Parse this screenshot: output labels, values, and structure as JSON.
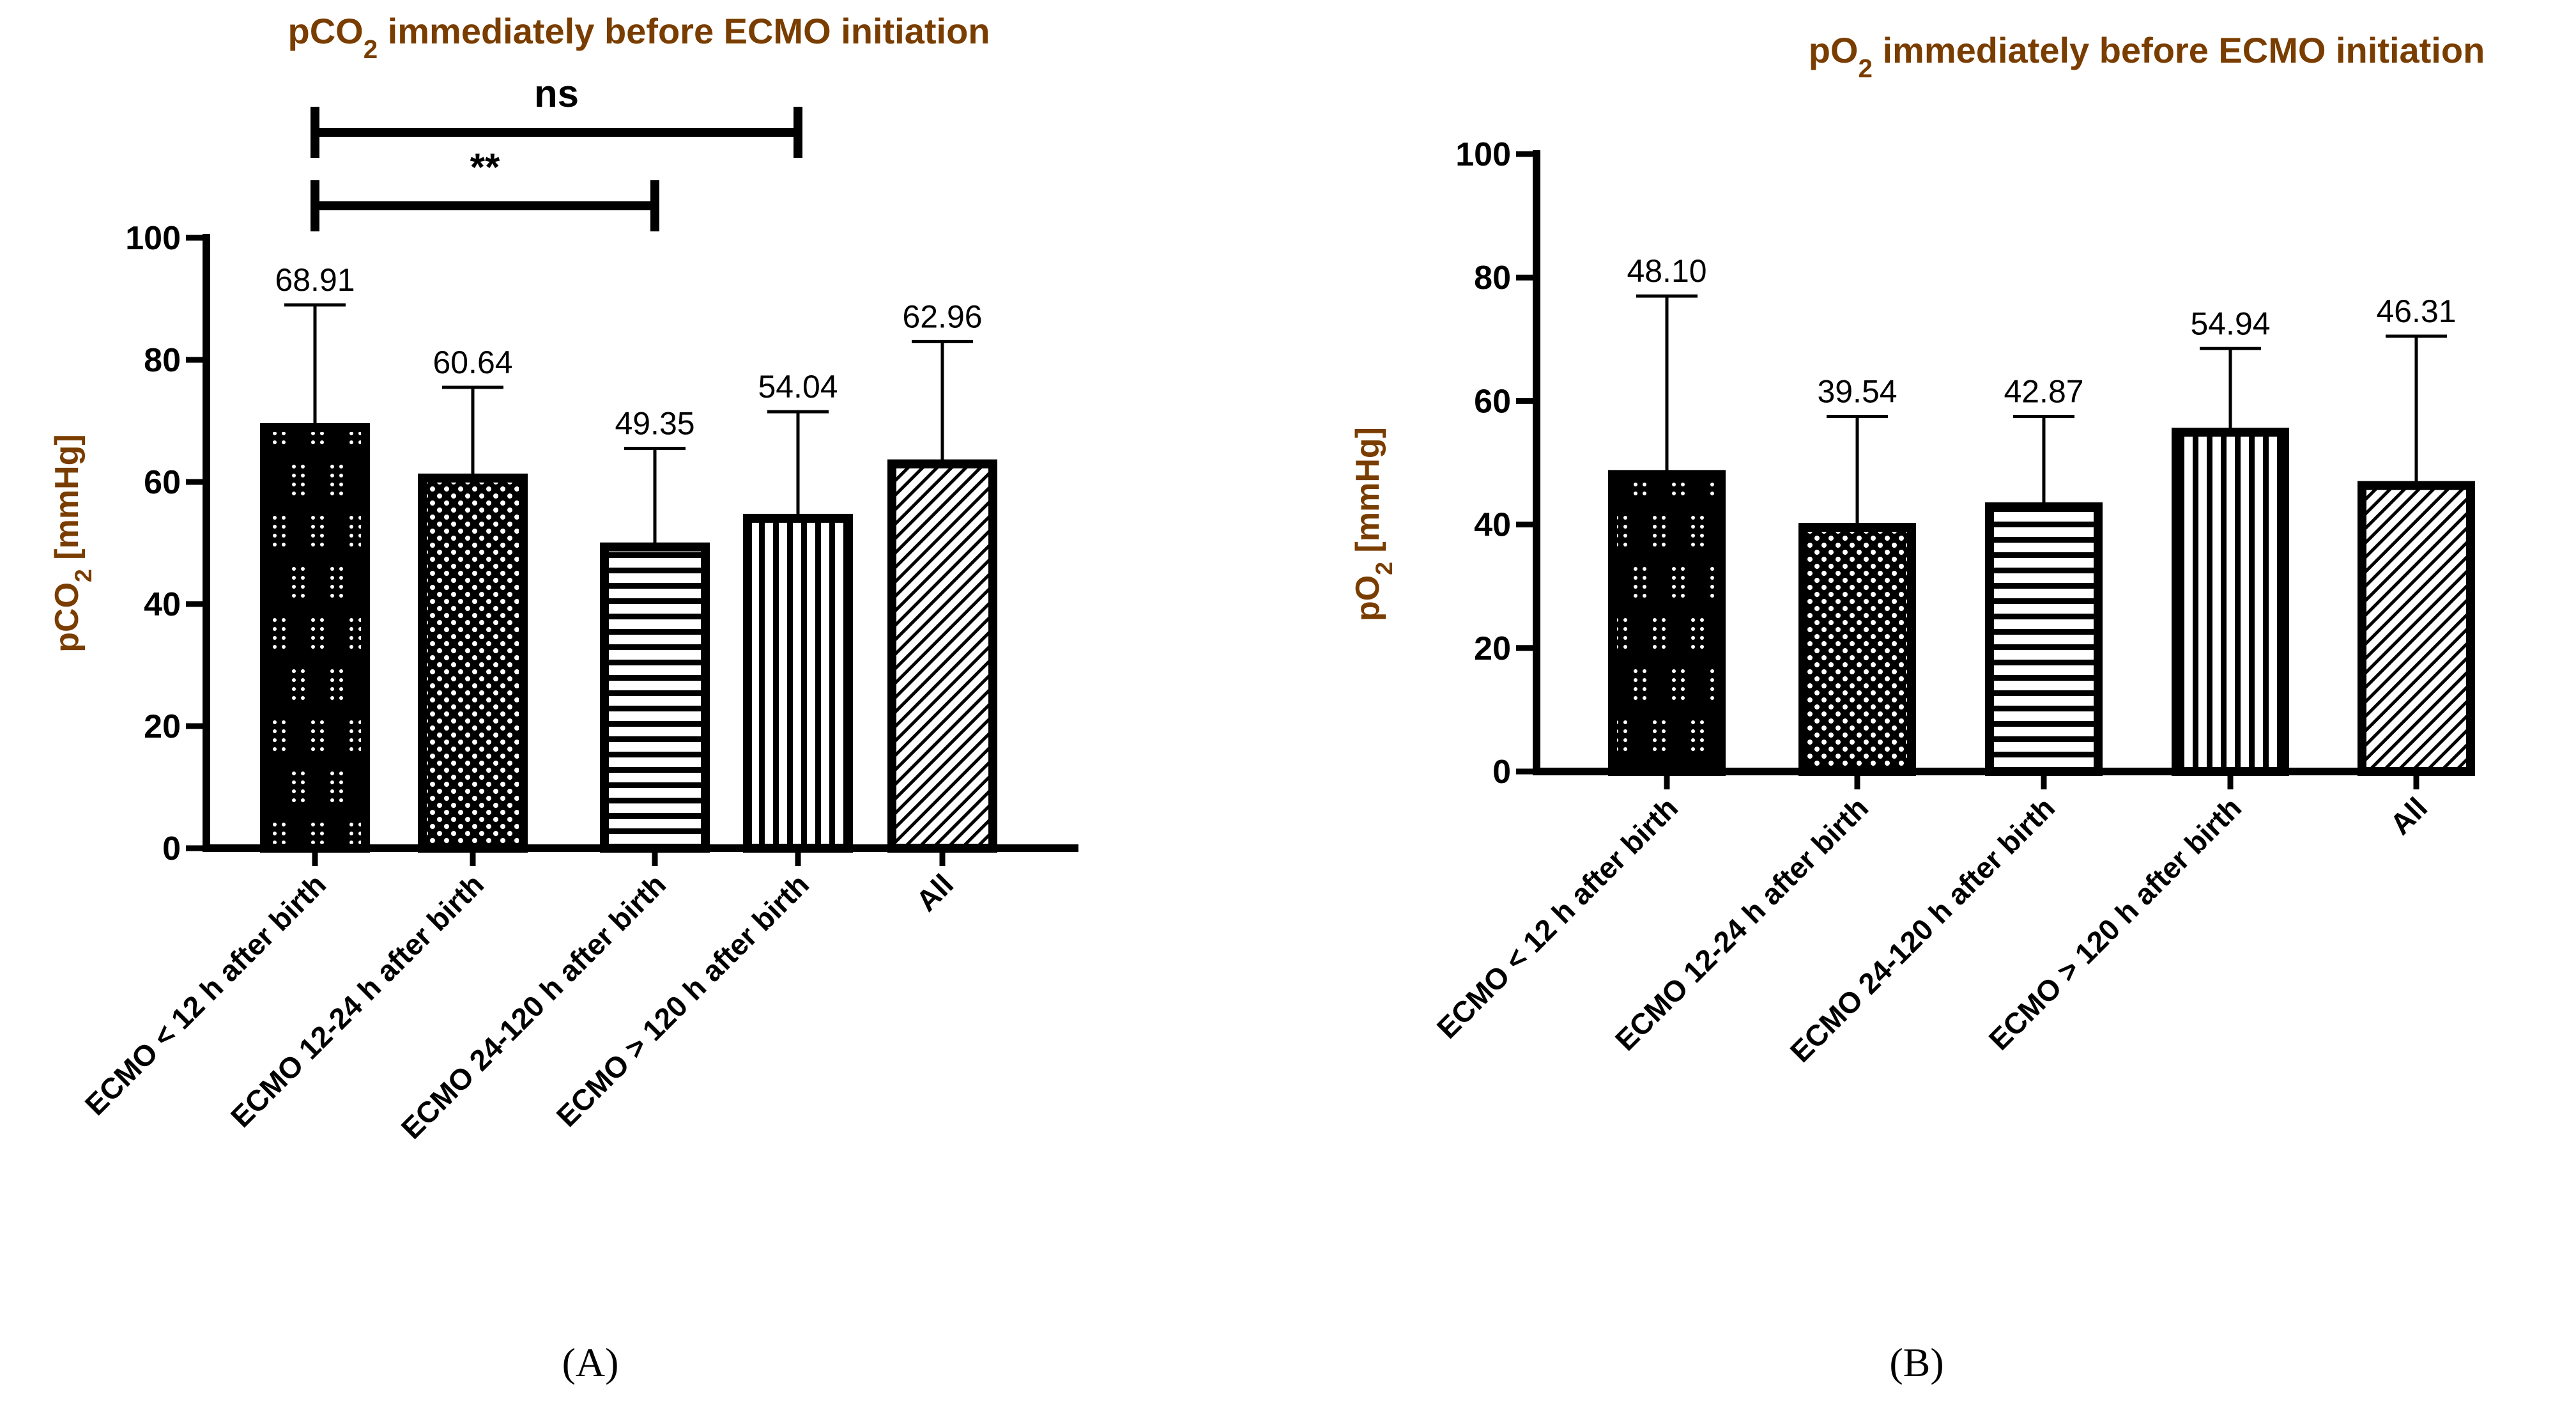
{
  "chart_data": [
    {
      "id": "A",
      "type": "bar",
      "title_main": "pCO",
      "title_sub": "2",
      "title_rest": " immediately before ECMO initiation",
      "ylabel_main": "pCO",
      "ylabel_sub": "2",
      "ylabel_rest": " [mmHg]",
      "xlabel": "",
      "ylim": [
        0,
        100
      ],
      "yticks": [
        0,
        20,
        40,
        60,
        80,
        100
      ],
      "categories": [
        "ECMO < 12 h after birth",
        "ECMO 12-24 h after birth",
        "ECMO 24-120 h after birth",
        "ECMO > 120 h after birth",
        "All"
      ],
      "values": [
        68.91,
        60.64,
        49.35,
        54.04,
        62.96
      ],
      "value_labels": [
        "68.91",
        "60.64",
        "49.35",
        "54.04",
        "62.96"
      ],
      "error_upper": [
        89,
        75.5,
        65.5,
        71.5,
        83
      ],
      "patterns": [
        "dots-sparse",
        "dots-dense",
        "horizontal-stripes",
        "vertical-stripes",
        "diagonal-hatch"
      ],
      "significance": [
        {
          "from": 0,
          "to": 3,
          "label": "ns"
        },
        {
          "from": 0,
          "to": 2,
          "label": "**"
        }
      ],
      "panel_label": "(A)"
    },
    {
      "id": "B",
      "type": "bar",
      "title_main": "pO",
      "title_sub": "2",
      "title_rest": " immediately before ECMO initiation",
      "ylabel_main": "pO",
      "ylabel_sub": "2",
      "ylabel_rest": " [mmHg]",
      "xlabel": "",
      "ylim": [
        0,
        100
      ],
      "yticks": [
        0,
        20,
        40,
        60,
        80,
        100
      ],
      "categories": [
        "ECMO < 12 h after birth",
        "ECMO 12-24 h after birth",
        "ECMO 24-120 h after birth",
        "ECMO > 120 h after birth",
        "All"
      ],
      "values": [
        48.1,
        39.54,
        42.87,
        54.94,
        46.31
      ],
      "value_labels": [
        "48.10",
        "39.54",
        "42.87",
        "54.94",
        "46.31"
      ],
      "error_upper": [
        77,
        57.5,
        57.5,
        68.5,
        70.5
      ],
      "patterns": [
        "dots-sparse",
        "dots-dense",
        "horizontal-stripes",
        "vertical-stripes",
        "diagonal-hatch"
      ],
      "significance": [],
      "panel_label": "(B)"
    }
  ]
}
